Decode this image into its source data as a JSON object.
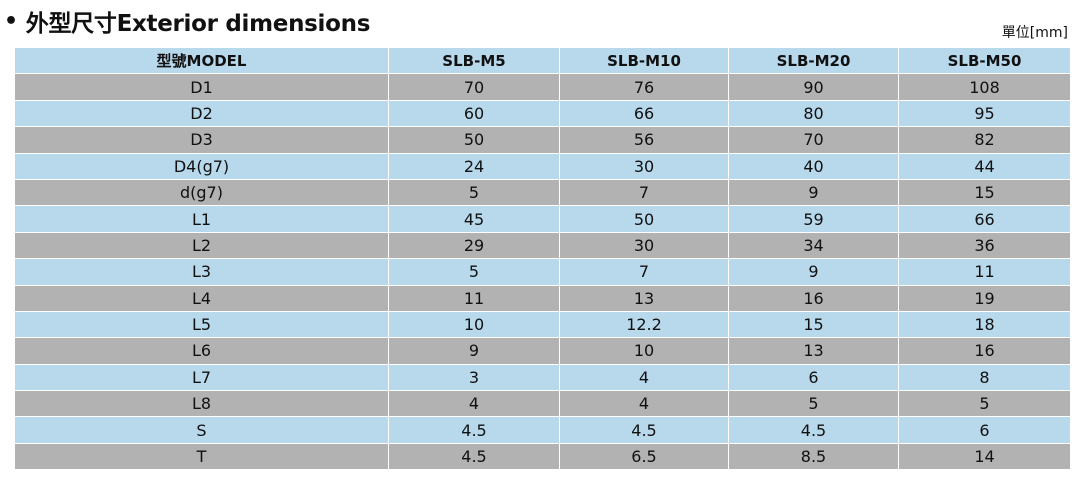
{
  "title": "外型尺寸Exterior dimensions",
  "unit": "單位[mm]",
  "table": {
    "headers": [
      "型號MODEL",
      "SLB-M5",
      "SLB-M10",
      "SLB-M20",
      "SLB-M50"
    ],
    "rows": [
      [
        "D1",
        "70",
        "76",
        "90",
        "108"
      ],
      [
        "D2",
        "60",
        "66",
        "80",
        "95"
      ],
      [
        "D3",
        "50",
        "56",
        "70",
        "82"
      ],
      [
        "D4(g7)",
        "24",
        "30",
        "40",
        "44"
      ],
      [
        "d(g7)",
        "5",
        "7",
        "9",
        "15"
      ],
      [
        "L1",
        "45",
        "50",
        "59",
        "66"
      ],
      [
        "L2",
        "29",
        "30",
        "34",
        "36"
      ],
      [
        "L3",
        "5",
        "7",
        "9",
        "11"
      ],
      [
        "L4",
        "11",
        "13",
        "16",
        "19"
      ],
      [
        "L5",
        "10",
        "12.2",
        "15",
        "18"
      ],
      [
        "L6",
        "9",
        "10",
        "13",
        "16"
      ],
      [
        "L7",
        "3",
        "4",
        "6",
        "8"
      ],
      [
        "L8",
        "4",
        "4",
        "5",
        "5"
      ],
      [
        "S",
        "4.5",
        "4.5",
        "4.5",
        "6"
      ],
      [
        "T",
        "4.5",
        "6.5",
        "8.5",
        "14"
      ]
    ]
  },
  "colors": {
    "row_blue": "#b8d8ec",
    "row_gray": "#b2b2b2"
  }
}
